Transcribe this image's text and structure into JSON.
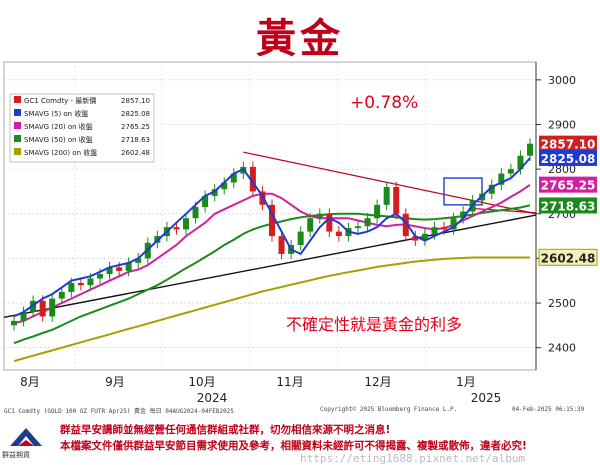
{
  "title": "黃金",
  "chart_data": {
    "type": "candlestick",
    "ylim": [
      2350,
      3040
    ],
    "y_ticks": [
      2400,
      2500,
      2600,
      2700,
      2800,
      2900,
      3000
    ],
    "x_month_labels": [
      "8月",
      "9月",
      "10月",
      "11月",
      "12月",
      "1月"
    ],
    "x_year_labels": [
      "2024",
      "2025"
    ],
    "legend": [
      {
        "label": "GC1 Comdty - 最新價",
        "value": "2857.10",
        "color": "#d21e1e"
      },
      {
        "label": "SMAVG (5)  on 收盤",
        "value": "2825.08",
        "color": "#1f3bd0"
      },
      {
        "label": "SMAVG (20)  on 收盤",
        "value": "2765.25",
        "color": "#d020a0"
      },
      {
        "label": "SMAVG (50)  on 收盤",
        "value": "2718.63",
        "color": "#1b8a1b"
      },
      {
        "label": "SMAVG (200)  on 收盤",
        "value": "2602.48",
        "color": "#a8a000"
      }
    ],
    "price_tags": [
      {
        "value": 2857.1,
        "text": "2857.10",
        "color": "#d21e1e"
      },
      {
        "value": 2825.08,
        "text": "2825.08",
        "color": "#1f3bd0"
      },
      {
        "value": 2765.25,
        "text": "2765.25",
        "color": "#d020a0"
      },
      {
        "value": 2718.63,
        "text": "2718.63",
        "color": "#1b8a1b"
      },
      {
        "value": 2602.48,
        "text": "2602.48",
        "color": "#a8a000"
      }
    ],
    "ma5": [
      2470,
      2480,
      2495,
      2510,
      2520,
      2535,
      2550,
      2555,
      2560,
      2570,
      2580,
      2585,
      2590,
      2600,
      2620,
      2640,
      2660,
      2680,
      2700,
      2720,
      2740,
      2750,
      2770,
      2790,
      2800,
      2770,
      2740,
      2700,
      2660,
      2620,
      2610,
      2640,
      2670,
      2690,
      2680,
      2660,
      2655,
      2660,
      2670,
      2690,
      2700,
      2680,
      2650,
      2640,
      2650,
      2660,
      2670,
      2690,
      2720,
      2740,
      2760,
      2770,
      2780,
      2800,
      2825
    ],
    "ma20": [
      2455,
      2460,
      2470,
      2480,
      2490,
      2500,
      2510,
      2520,
      2530,
      2540,
      2550,
      2560,
      2570,
      2575,
      2585,
      2600,
      2615,
      2630,
      2650,
      2665,
      2680,
      2700,
      2710,
      2720,
      2730,
      2740,
      2745,
      2745,
      2735,
      2720,
      2705,
      2695,
      2690,
      2690,
      2690,
      2690,
      2685,
      2680,
      2675,
      2672,
      2675,
      2676,
      2672,
      2668,
      2665,
      2668,
      2675,
      2685,
      2695,
      2705,
      2715,
      2725,
      2738,
      2750,
      2765
    ],
    "ma50": [
      2410,
      2418,
      2425,
      2433,
      2440,
      2450,
      2460,
      2470,
      2478,
      2486,
      2494,
      2502,
      2510,
      2520,
      2530,
      2540,
      2552,
      2565,
      2578,
      2590,
      2603,
      2616,
      2630,
      2642,
      2655,
      2665,
      2672,
      2678,
      2683,
      2688,
      2692,
      2695,
      2697,
      2699,
      2700,
      2700,
      2700,
      2698,
      2696,
      2694,
      2692,
      2690,
      2688,
      2687,
      2688,
      2690,
      2692,
      2695,
      2698,
      2702,
      2705,
      2708,
      2711,
      2714,
      2719
    ],
    "ma200": [
      2370,
      2376,
      2382,
      2388,
      2394,
      2400,
      2406,
      2412,
      2418,
      2424,
      2430,
      2436,
      2442,
      2448,
      2454,
      2460,
      2466,
      2472,
      2478,
      2484,
      2490,
      2496,
      2502,
      2508,
      2514,
      2520,
      2526,
      2531,
      2536,
      2541,
      2546,
      2551,
      2556,
      2561,
      2565,
      2569,
      2573,
      2577,
      2581,
      2584,
      2587,
      2590,
      2593,
      2595,
      2597,
      2599,
      2600,
      2601,
      2602,
      2602,
      2602,
      2602,
      2602,
      2602,
      2602
    ],
    "closes": [
      2460,
      2480,
      2505,
      2470,
      2510,
      2525,
      2545,
      2540,
      2555,
      2565,
      2580,
      2572,
      2590,
      2600,
      2635,
      2650,
      2670,
      2665,
      2690,
      2715,
      2740,
      2755,
      2770,
      2790,
      2805,
      2750,
      2720,
      2650,
      2610,
      2630,
      2660,
      2690,
      2700,
      2660,
      2650,
      2668,
      2672,
      2690,
      2720,
      2760,
      2700,
      2650,
      2640,
      2655,
      2670,
      2665,
      2690,
      2705,
      2730,
      2745,
      2765,
      2790,
      2800,
      2830,
      2857
    ],
    "annotations": {
      "pct_change": "+0.78%",
      "comment": "不確定性就是黃金的利多"
    }
  },
  "footer": {
    "security": "GC1 Comdty (GOLD 100 OZ FUTR  Apr25) 黃金   每日 04AUG2024-04FEB2025",
    "copyright": "Copyright© 2025 Bloomberg Finance L.P.",
    "timestamp": "04-Feb-2025 06:15:39"
  },
  "disclaimer": {
    "line1": "群益早安講師並無經營任何通信群組或社群，切勿相信來源不明之消息!",
    "line2": "本檔案文件僅供群益早安節目需求使用及參考，相關資料未經許可不得揭露、複製或散佈，違者必究!",
    "logo_text": "群益期貨",
    "watermark": "https://eting1688.pixnet.net/album"
  }
}
